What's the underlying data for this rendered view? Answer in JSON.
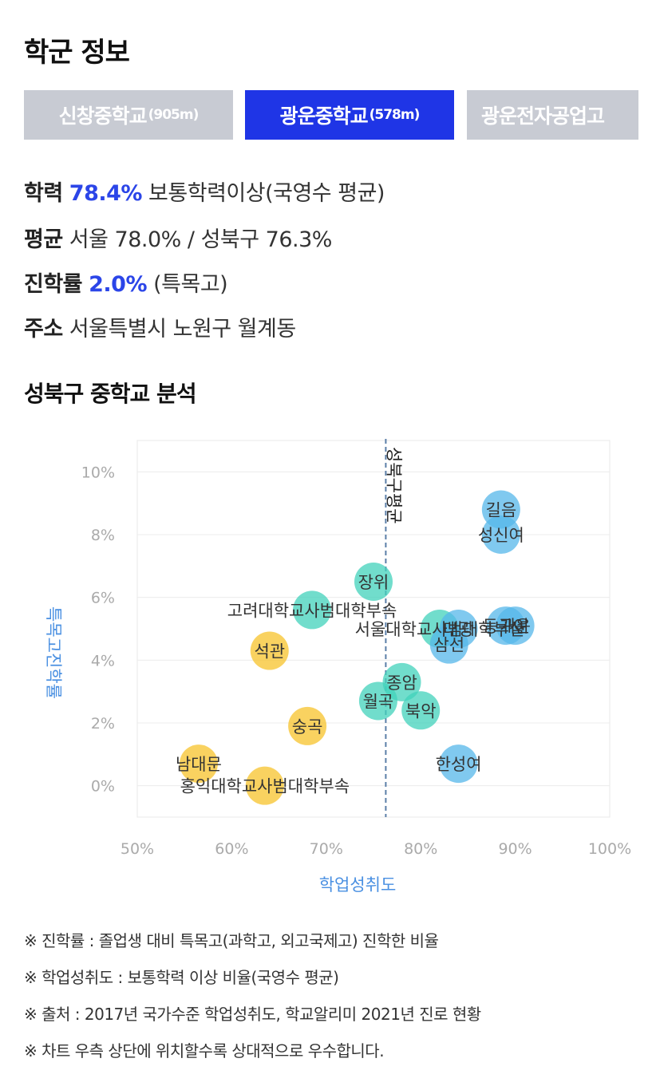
{
  "header": {
    "title": "학군 정보"
  },
  "tabs": [
    {
      "name": "신창중학교",
      "distance": "(905m)",
      "active": false
    },
    {
      "name": "광운중학교",
      "distance": "(578m)",
      "active": true
    },
    {
      "name": "광운전자공업고",
      "distance": "",
      "active": false
    }
  ],
  "info": {
    "achievement": {
      "label": "학력",
      "value": "78.4%",
      "desc": "보통학력이상(국영수 평균)"
    },
    "average": {
      "label": "평균",
      "text": "서울 78.0% / 성북구 76.3%"
    },
    "advancement": {
      "label": "진학률",
      "value": "2.0%",
      "desc": "(특목고)"
    },
    "address": {
      "label": "주소",
      "text": "서울특별시 노원구 월계동"
    }
  },
  "analysis": {
    "title": "성북구 중학교 분석"
  },
  "chart_data": {
    "type": "scatter",
    "xlabel": "학업성취도",
    "ylabel": "특목고진학률",
    "xlim": [
      50,
      100
    ],
    "ylim": [
      -1,
      11
    ],
    "xticks": [
      "50%",
      "60%",
      "70%",
      "80%",
      "90%",
      "100%"
    ],
    "yticks": [
      "0%",
      "2%",
      "4%",
      "6%",
      "8%",
      "10%"
    ],
    "reference_line": {
      "x": 76.3,
      "label": "성북구평균"
    },
    "colors": {
      "yellow": "#f7c32b",
      "teal": "#42d1bb",
      "blue": "#55b7ea",
      "axis_label": "#4a90e2"
    },
    "points": [
      {
        "name": "길음",
        "x": 88.5,
        "y": 8.8,
        "color": "blue"
      },
      {
        "name": "성신여",
        "x": 88.5,
        "y": 8.0,
        "color": "blue"
      },
      {
        "name": "장위",
        "x": 75.0,
        "y": 6.5,
        "color": "teal"
      },
      {
        "name": "고려대학교사범대학부속",
        "x": 68.5,
        "y": 5.6,
        "color": "teal"
      },
      {
        "name": "서울대학교사범대학부설",
        "x": 82.0,
        "y": 5.0,
        "color": "teal"
      },
      {
        "name": "대광",
        "x": 84.0,
        "y": 5.0,
        "color": "blue"
      },
      {
        "name": "동구여",
        "x": 89.0,
        "y": 5.1,
        "color": "blue"
      },
      {
        "name": "개운",
        "x": 90.0,
        "y": 5.1,
        "color": "blue"
      },
      {
        "name": "삼선",
        "x": 83.0,
        "y": 4.5,
        "color": "blue"
      },
      {
        "name": "석관",
        "x": 64.0,
        "y": 4.3,
        "color": "yellow"
      },
      {
        "name": "종암",
        "x": 78.0,
        "y": 3.3,
        "color": "teal"
      },
      {
        "name": "월곡",
        "x": 75.5,
        "y": 2.7,
        "color": "teal"
      },
      {
        "name": "북악",
        "x": 80.0,
        "y": 2.4,
        "color": "teal"
      },
      {
        "name": "숭곡",
        "x": 68.0,
        "y": 1.9,
        "color": "yellow"
      },
      {
        "name": "남대문",
        "x": 56.5,
        "y": 0.7,
        "color": "yellow"
      },
      {
        "name": "홍익대학교사범대학부속",
        "x": 63.5,
        "y": 0.0,
        "color": "yellow"
      },
      {
        "name": "한성여",
        "x": 84.0,
        "y": 0.7,
        "color": "blue"
      }
    ]
  },
  "notes": [
    "※ 진학률 : 졸업생 대비 특목고(과학고, 외고국제고) 진학한 비율",
    "※ 학업성취도 : 보통학력 이상 비율(국영수 평균)",
    "※ 출처 : 2017년 국가수준 학업성취도, 학교알리미 2021년 진로 현황",
    "※ 차트 우측 상단에 위치할수록 상대적으로 우수합니다."
  ]
}
